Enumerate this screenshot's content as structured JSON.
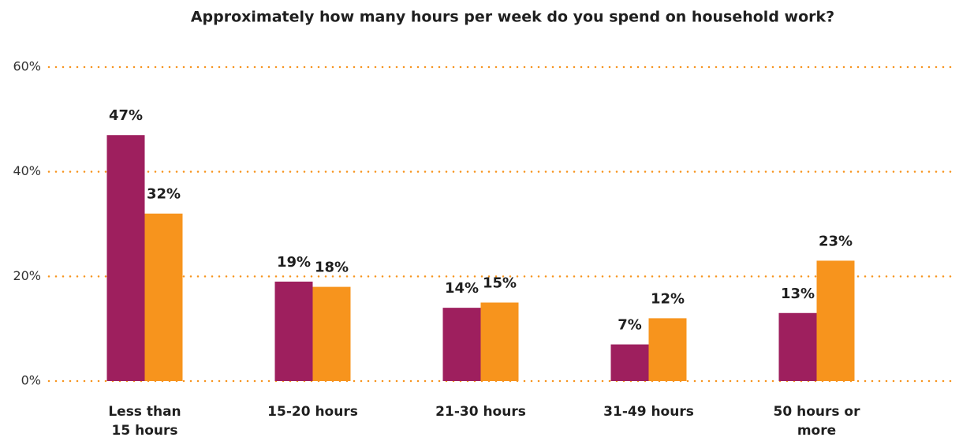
{
  "chart_data": {
    "type": "bar",
    "title": "Approximately how many hours per week do you spend on household work?",
    "categories": [
      "Less than 15 hours",
      "15-20 hours",
      "21-30 hours",
      "31-49 hours",
      "50 hours or more"
    ],
    "series": [
      {
        "color": "#9e1f5e",
        "values": [
          47,
          19,
          14,
          7,
          13
        ],
        "value_labels": [
          "47%",
          "19%",
          "14%",
          "7%",
          "13%"
        ]
      },
      {
        "color": "#f7941d",
        "values": [
          32,
          18,
          15,
          12,
          23
        ],
        "value_labels": [
          "32%",
          "18%",
          "15%",
          "12%",
          "23%"
        ]
      }
    ],
    "ylim": [
      0,
      60
    ],
    "yticks": [
      {
        "value": 0,
        "label": "0%"
      },
      {
        "value": 20,
        "label": "20%"
      },
      {
        "value": 40,
        "label": "40%"
      },
      {
        "value": 60,
        "label": "60%"
      }
    ],
    "grid": true,
    "grid_color": "#f7941d"
  }
}
